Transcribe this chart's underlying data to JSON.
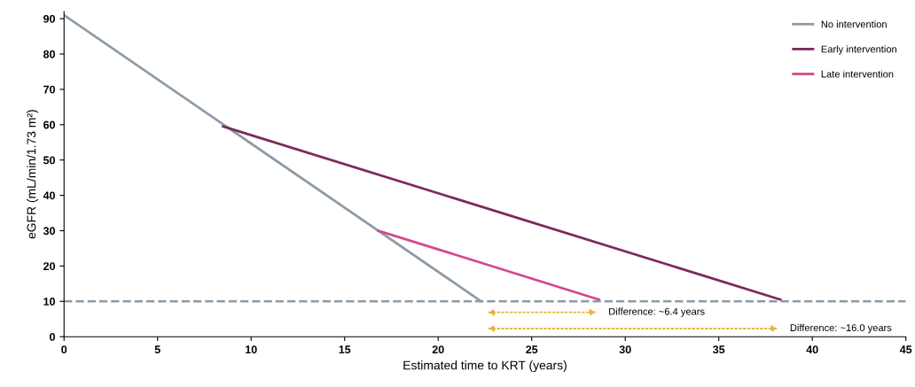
{
  "chart_data": {
    "type": "line",
    "xlabel": "Estimated time to KRT (years)",
    "ylabel": "eGFR (mL/min/1.73 m²)",
    "series": [
      {
        "name": "No intervention",
        "color": "#8c9ba6",
        "x": [
          0,
          22.3
        ],
        "values": [
          91,
          10
        ]
      },
      {
        "name": "Early intervention",
        "color": "#7b2a5c",
        "x": [
          8.5,
          38.3
        ],
        "values": [
          59.5,
          10.5
        ]
      },
      {
        "name": "Late intervention",
        "color": "#d4478e",
        "x": [
          16.8,
          28.6
        ],
        "values": [
          30,
          10.5
        ]
      }
    ],
    "xlim": [
      0,
      45
    ],
    "xticks": [
      0,
      5,
      10,
      15,
      20,
      25,
      30,
      35,
      40,
      45
    ],
    "ylim": [
      0,
      92
    ],
    "yticks": [
      0,
      10,
      20,
      30,
      40,
      50,
      60,
      70,
      80,
      90
    ],
    "ref_lines": [
      {
        "axis": "y",
        "value": 10,
        "color": "#8c9ba6",
        "line_style": "dashed"
      }
    ],
    "annotations": [
      "Difference: ~6.4 years",
      "Difference: ~16.0 years"
    ],
    "grid": false,
    "legend": "top right",
    "marker": "none",
    "line_style": "solid"
  }
}
